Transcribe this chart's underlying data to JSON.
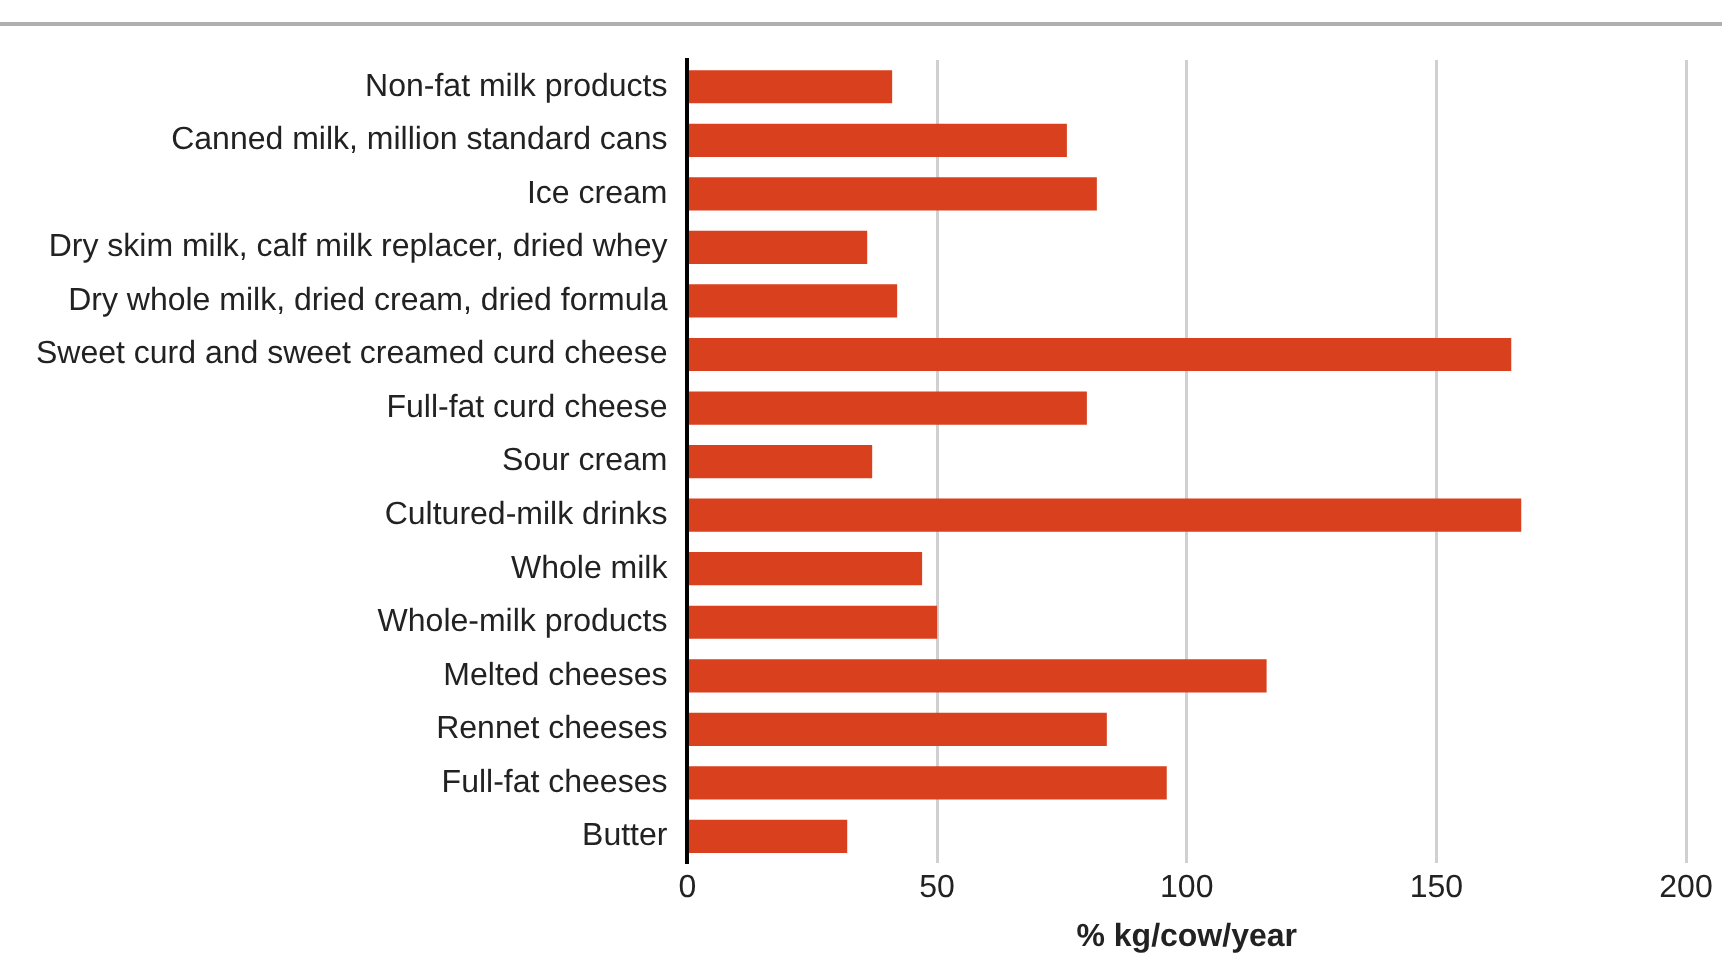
{
  "chart_data": {
    "type": "bar",
    "orientation": "horizontal",
    "xlabel": "% kg/cow/year",
    "categories": [
      "Non-fat milk products",
      "Canned milk, million standard cans",
      "Ice cream",
      "Dry skim milk, calf milk replacer, dried whey",
      "Dry whole milk, dried cream, dried formula",
      "Sweet curd and sweet creamed curd cheese",
      "Full-fat curd cheese",
      "Sour cream",
      "Cultured-milk drinks",
      "Whole milk",
      "Whole-milk products",
      "Melted cheeses",
      "Rennet cheeses",
      "Full-fat cheeses",
      "Butter"
    ],
    "values": [
      41,
      76,
      82,
      36,
      42,
      165,
      80,
      37,
      167,
      47,
      50,
      116,
      84,
      96,
      32
    ],
    "color": "#d9411e",
    "xlim": [
      0,
      200
    ],
    "xticks": [
      0,
      50,
      100,
      150,
      200
    ],
    "grid": "x",
    "legend": false
  }
}
